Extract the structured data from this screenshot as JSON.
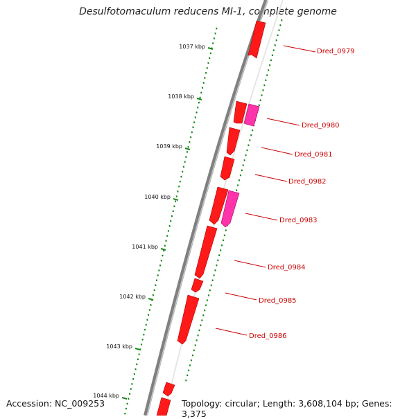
{
  "title": "Desulfotomaculum reducens MI-1, complete genome",
  "footer": {
    "accession": "Accession: NC_009253",
    "summary": "Topology: circular; Length: 3,608,104 bp; Genes: 3,375"
  },
  "colors": {
    "gene": "#ff1a1a",
    "gene_highlight": "#ff33aa",
    "label": "#cc0000",
    "tick": "#1a8a1a",
    "backbone": "#808080"
  },
  "ticks": [
    {
      "label": "1037 kbp"
    },
    {
      "label": "1038 kbp"
    },
    {
      "label": "1039 kbp"
    },
    {
      "label": "1040 kbp"
    },
    {
      "label": "1041 kbp"
    },
    {
      "label": "1042 kbp"
    },
    {
      "label": "1043 kbp"
    },
    {
      "label": "1044 kbp"
    }
  ],
  "genes": [
    {
      "name": "Dred_0979"
    },
    {
      "name": "Dred_0980"
    },
    {
      "name": "Dred_0981"
    },
    {
      "name": "Dred_0982"
    },
    {
      "name": "Dred_0983"
    },
    {
      "name": "Dred_0984"
    },
    {
      "name": "Dred_0985"
    },
    {
      "name": "Dred_0986"
    }
  ]
}
